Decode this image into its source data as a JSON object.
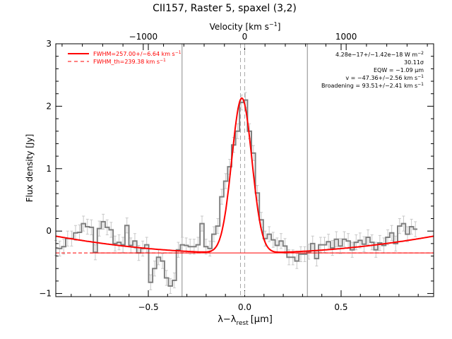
{
  "title": "CII157, Raster 5, spaxel (3,2)",
  "chart_data": {
    "type": "line",
    "title": "CII157, Raster 5, spaxel (3,2)",
    "xlabel": "λ−λ",
    "xlabel_sub": "rest",
    "xlabel_unit": "[μm]",
    "ylabel": "Flux density [Jy]",
    "top_xlabel": "Velocity [km s",
    "top_xlabel_sup": "−1",
    "top_xlabel_close": "]",
    "xlim": [
      -0.98,
      0.98
    ],
    "ylim": [
      -1.05,
      3.0
    ],
    "xticks": [
      -0.5,
      0.0,
      0.5
    ],
    "xtick_labels": [
      "−0.5",
      "0.0",
      "0.5"
    ],
    "yticks": [
      -1,
      0,
      1,
      2,
      3
    ],
    "ytick_labels": [
      "−1",
      "0",
      "1",
      "2",
      "3"
    ],
    "top_ticks": [
      -1000,
      0,
      1000
    ],
    "top_tick_labels": [
      "−1000",
      "0",
      "1000"
    ],
    "velocity_per_micron": 1900,
    "vertical_lines_gray": [
      -0.325,
      0.325
    ],
    "vertical_lines_dashed": [
      -0.022,
      0.0
    ],
    "legend": [
      {
        "label": "FWHM=257.00+/−6.64 km s",
        "sup": "−1",
        "style": "solid"
      },
      {
        "label": "FWHM_th=239.38 km s",
        "sup": "−1",
        "style": "dashed"
      }
    ],
    "annotations": [
      {
        "text": "4.28e−17+/−1.42e−18 W m",
        "sup": "−2"
      },
      {
        "text": "30.11σ",
        "sup": ""
      },
      {
        "text": "EQW = −1.09 μm",
        "sup": ""
      },
      {
        "text": "v = −47.36+/−2.56 km s",
        "sup": "−1"
      },
      {
        "text": "Broadening = 93.51+/−2.41 km s",
        "sup": "−1"
      }
    ],
    "spectrum": {
      "x0": -0.98,
      "step": 0.0205,
      "y": [
        -0.27,
        -0.28,
        -0.25,
        -0.12,
        -0.12,
        -0.03,
        -0.02,
        0.12,
        0.07,
        0.06,
        -0.34,
        0.04,
        0.15,
        0.06,
        0.02,
        -0.2,
        -0.18,
        -0.22,
        0.09,
        -0.23,
        -0.16,
        -0.35,
        -0.28,
        -0.22,
        -0.82,
        -0.6,
        -0.42,
        -0.48,
        -0.75,
        -0.88,
        -0.79,
        -0.3,
        -0.22,
        -0.23,
        -0.25,
        -0.25,
        -0.22,
        0.12,
        -0.25,
        -0.28,
        -0.05,
        0.08,
        0.55,
        0.8,
        1.03,
        1.38,
        1.6,
        2.06,
        2.1,
        1.6,
        1.25,
        0.61,
        0.18,
        -0.12,
        -0.05,
        -0.14,
        -0.23,
        -0.16,
        -0.24,
        -0.42,
        -0.42,
        -0.48,
        -0.37,
        -0.37,
        -0.33,
        -0.2,
        -0.44,
        -0.22,
        -0.22,
        -0.17,
        -0.27,
        -0.13,
        -0.24,
        -0.13,
        -0.16,
        -0.3,
        -0.18,
        -0.15,
        -0.21,
        -0.1,
        -0.18,
        -0.3,
        -0.19,
        -0.23,
        -0.1,
        -0.03,
        -0.2,
        0.08,
        0.12,
        -0.05,
        0.07,
        0.03
      ],
      "err": 0.12
    },
    "model": {
      "baseline_center": -0.35,
      "baseline_curv": 0.28,
      "peak_center": -0.015,
      "peak_amp": 2.48,
      "sigma": 0.052
    },
    "colors": {
      "data": "#7f7f7f",
      "errorbar": "#c8c8c8",
      "model": "#ff0000",
      "baseline": "#ff0000",
      "vline": "#8a8a8a",
      "dashed": "#aaaaaa",
      "legend_text": "#ff0000",
      "frame": "#000000"
    }
  }
}
